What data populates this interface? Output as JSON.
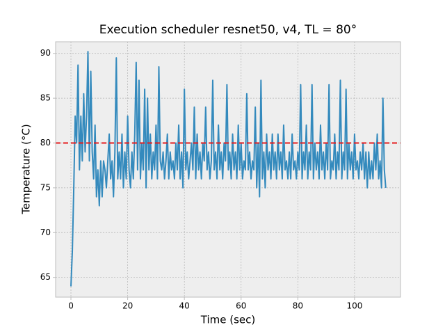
{
  "chart_data": {
    "type": "line",
    "title": "Execution scheduler resnet50, v4, TL = 80°",
    "xlabel": "Time (sec)",
    "ylabel": "Temperature (°C)",
    "x": [
      0,
      0.5,
      1,
      1.5,
      2,
      2.5,
      3,
      3.5,
      4,
      4.5,
      5,
      5.5,
      6,
      6.5,
      7,
      7.5,
      8,
      8.5,
      9,
      9.5,
      10,
      10.5,
      11,
      11.5,
      12,
      12.5,
      13,
      13.5,
      14,
      14.5,
      15,
      15.5,
      16,
      16.5,
      17,
      17.5,
      18,
      18.5,
      19,
      19.5,
      20,
      20.5,
      21,
      21.5,
      22,
      22.5,
      23,
      23.5,
      24,
      24.5,
      25,
      25.5,
      26,
      26.5,
      27,
      27.5,
      28,
      28.5,
      29,
      29.5,
      30,
      30.5,
      31,
      31.5,
      32,
      32.5,
      33,
      33.5,
      34,
      34.5,
      35,
      35.5,
      36,
      36.5,
      37,
      37.5,
      38,
      38.5,
      39,
      39.5,
      40,
      40.5,
      41,
      41.5,
      42,
      42.5,
      43,
      43.5,
      44,
      44.5,
      45,
      45.5,
      46,
      46.5,
      47,
      47.5,
      48,
      48.5,
      49,
      49.5,
      50,
      50.5,
      51,
      51.5,
      52,
      52.5,
      53,
      53.5,
      54,
      54.5,
      55,
      55.5,
      56,
      56.5,
      57,
      57.5,
      58,
      58.5,
      59,
      59.5,
      60,
      60.5,
      61,
      61.5,
      62,
      62.5,
      63,
      63.5,
      64,
      64.5,
      65,
      65.5,
      66,
      66.5,
      67,
      67.5,
      68,
      68.5,
      69,
      69.5,
      70,
      70.5,
      71,
      71.5,
      72,
      72.5,
      73,
      73.5,
      74,
      74.5,
      75,
      75.5,
      76,
      76.5,
      77,
      77.5,
      78,
      78.5,
      79,
      79.5,
      80,
      80.5,
      81,
      81.5,
      82,
      82.5,
      83,
      83.5,
      84,
      84.5,
      85,
      85.5,
      86,
      86.5,
      87,
      87.5,
      88,
      88.5,
      89,
      89.5,
      90,
      90.5,
      91,
      91.5,
      92,
      92.5,
      93,
      93.5,
      94,
      94.5,
      95,
      95.5,
      96,
      96.5,
      97,
      97.5,
      98,
      98.5,
      99,
      99.5,
      100,
      100.5,
      101,
      101.5,
      102,
      102.5,
      103,
      103.5,
      104,
      104.5,
      105,
      105.5,
      106,
      106.5,
      107,
      107.5,
      108,
      108.5,
      109,
      109.5,
      110,
      110.5,
      111
    ],
    "values": [
      64,
      68,
      75,
      83,
      80,
      88.7,
      77,
      83,
      78,
      85.5,
      79,
      83,
      90.2,
      78,
      88,
      79,
      76,
      82,
      74,
      77,
      73,
      78,
      74,
      78,
      77,
      75,
      78,
      81,
      76,
      78,
      74,
      79,
      89.5,
      76,
      79,
      76,
      81,
      75,
      79,
      76,
      83,
      77,
      75,
      79,
      76,
      81,
      89,
      77,
      87,
      76,
      80,
      77,
      86,
      75,
      85,
      77,
      81,
      76,
      79,
      77,
      82,
      76,
      88.5,
      78,
      77,
      79,
      76,
      78,
      81,
      76,
      79,
      77,
      78,
      76,
      80,
      77,
      82,
      76,
      79,
      75,
      86,
      77,
      79,
      76,
      78,
      80,
      77,
      84,
      76,
      81,
      77,
      79,
      76,
      80,
      78,
      84,
      77,
      79,
      76,
      78,
      87,
      77,
      79,
      76,
      82,
      77,
      79,
      76,
      80,
      78,
      86.5,
      77,
      79,
      76,
      81,
      77,
      79,
      76,
      82,
      77,
      80,
      76,
      78,
      77,
      85.5,
      77,
      79,
      76,
      78,
      77,
      84,
      75,
      80,
      74,
      87,
      76,
      79,
      75,
      81,
      77,
      79,
      76,
      81,
      77,
      79,
      76,
      81,
      77,
      79,
      76,
      82,
      77,
      78,
      76,
      79,
      76,
      81,
      77,
      78,
      76,
      79,
      77,
      86.5,
      76,
      79,
      77,
      82,
      76,
      79,
      77,
      86.5,
      76,
      80,
      77,
      79,
      76,
      82,
      77,
      79,
      76,
      80,
      77,
      86.5,
      76,
      78,
      77,
      81,
      76,
      79,
      77,
      87,
      76,
      79,
      77,
      86,
      76,
      80,
      77,
      79,
      76,
      81,
      77,
      78,
      76,
      79,
      77,
      80,
      76,
      79,
      75,
      79,
      76,
      78,
      76,
      80,
      77,
      81,
      76,
      78,
      75,
      85,
      77,
      75
    ],
    "color": "#348abd",
    "threshold": 80,
    "threshold_color": "#e41a1c",
    "xlim": [
      -5.4,
      116.2
    ],
    "ylim": [
      62.8,
      91.3
    ],
    "xticks": [
      0,
      20,
      40,
      60,
      80,
      100
    ],
    "yticks": [
      65,
      70,
      75,
      80,
      85,
      90
    ],
    "grid": true
  }
}
